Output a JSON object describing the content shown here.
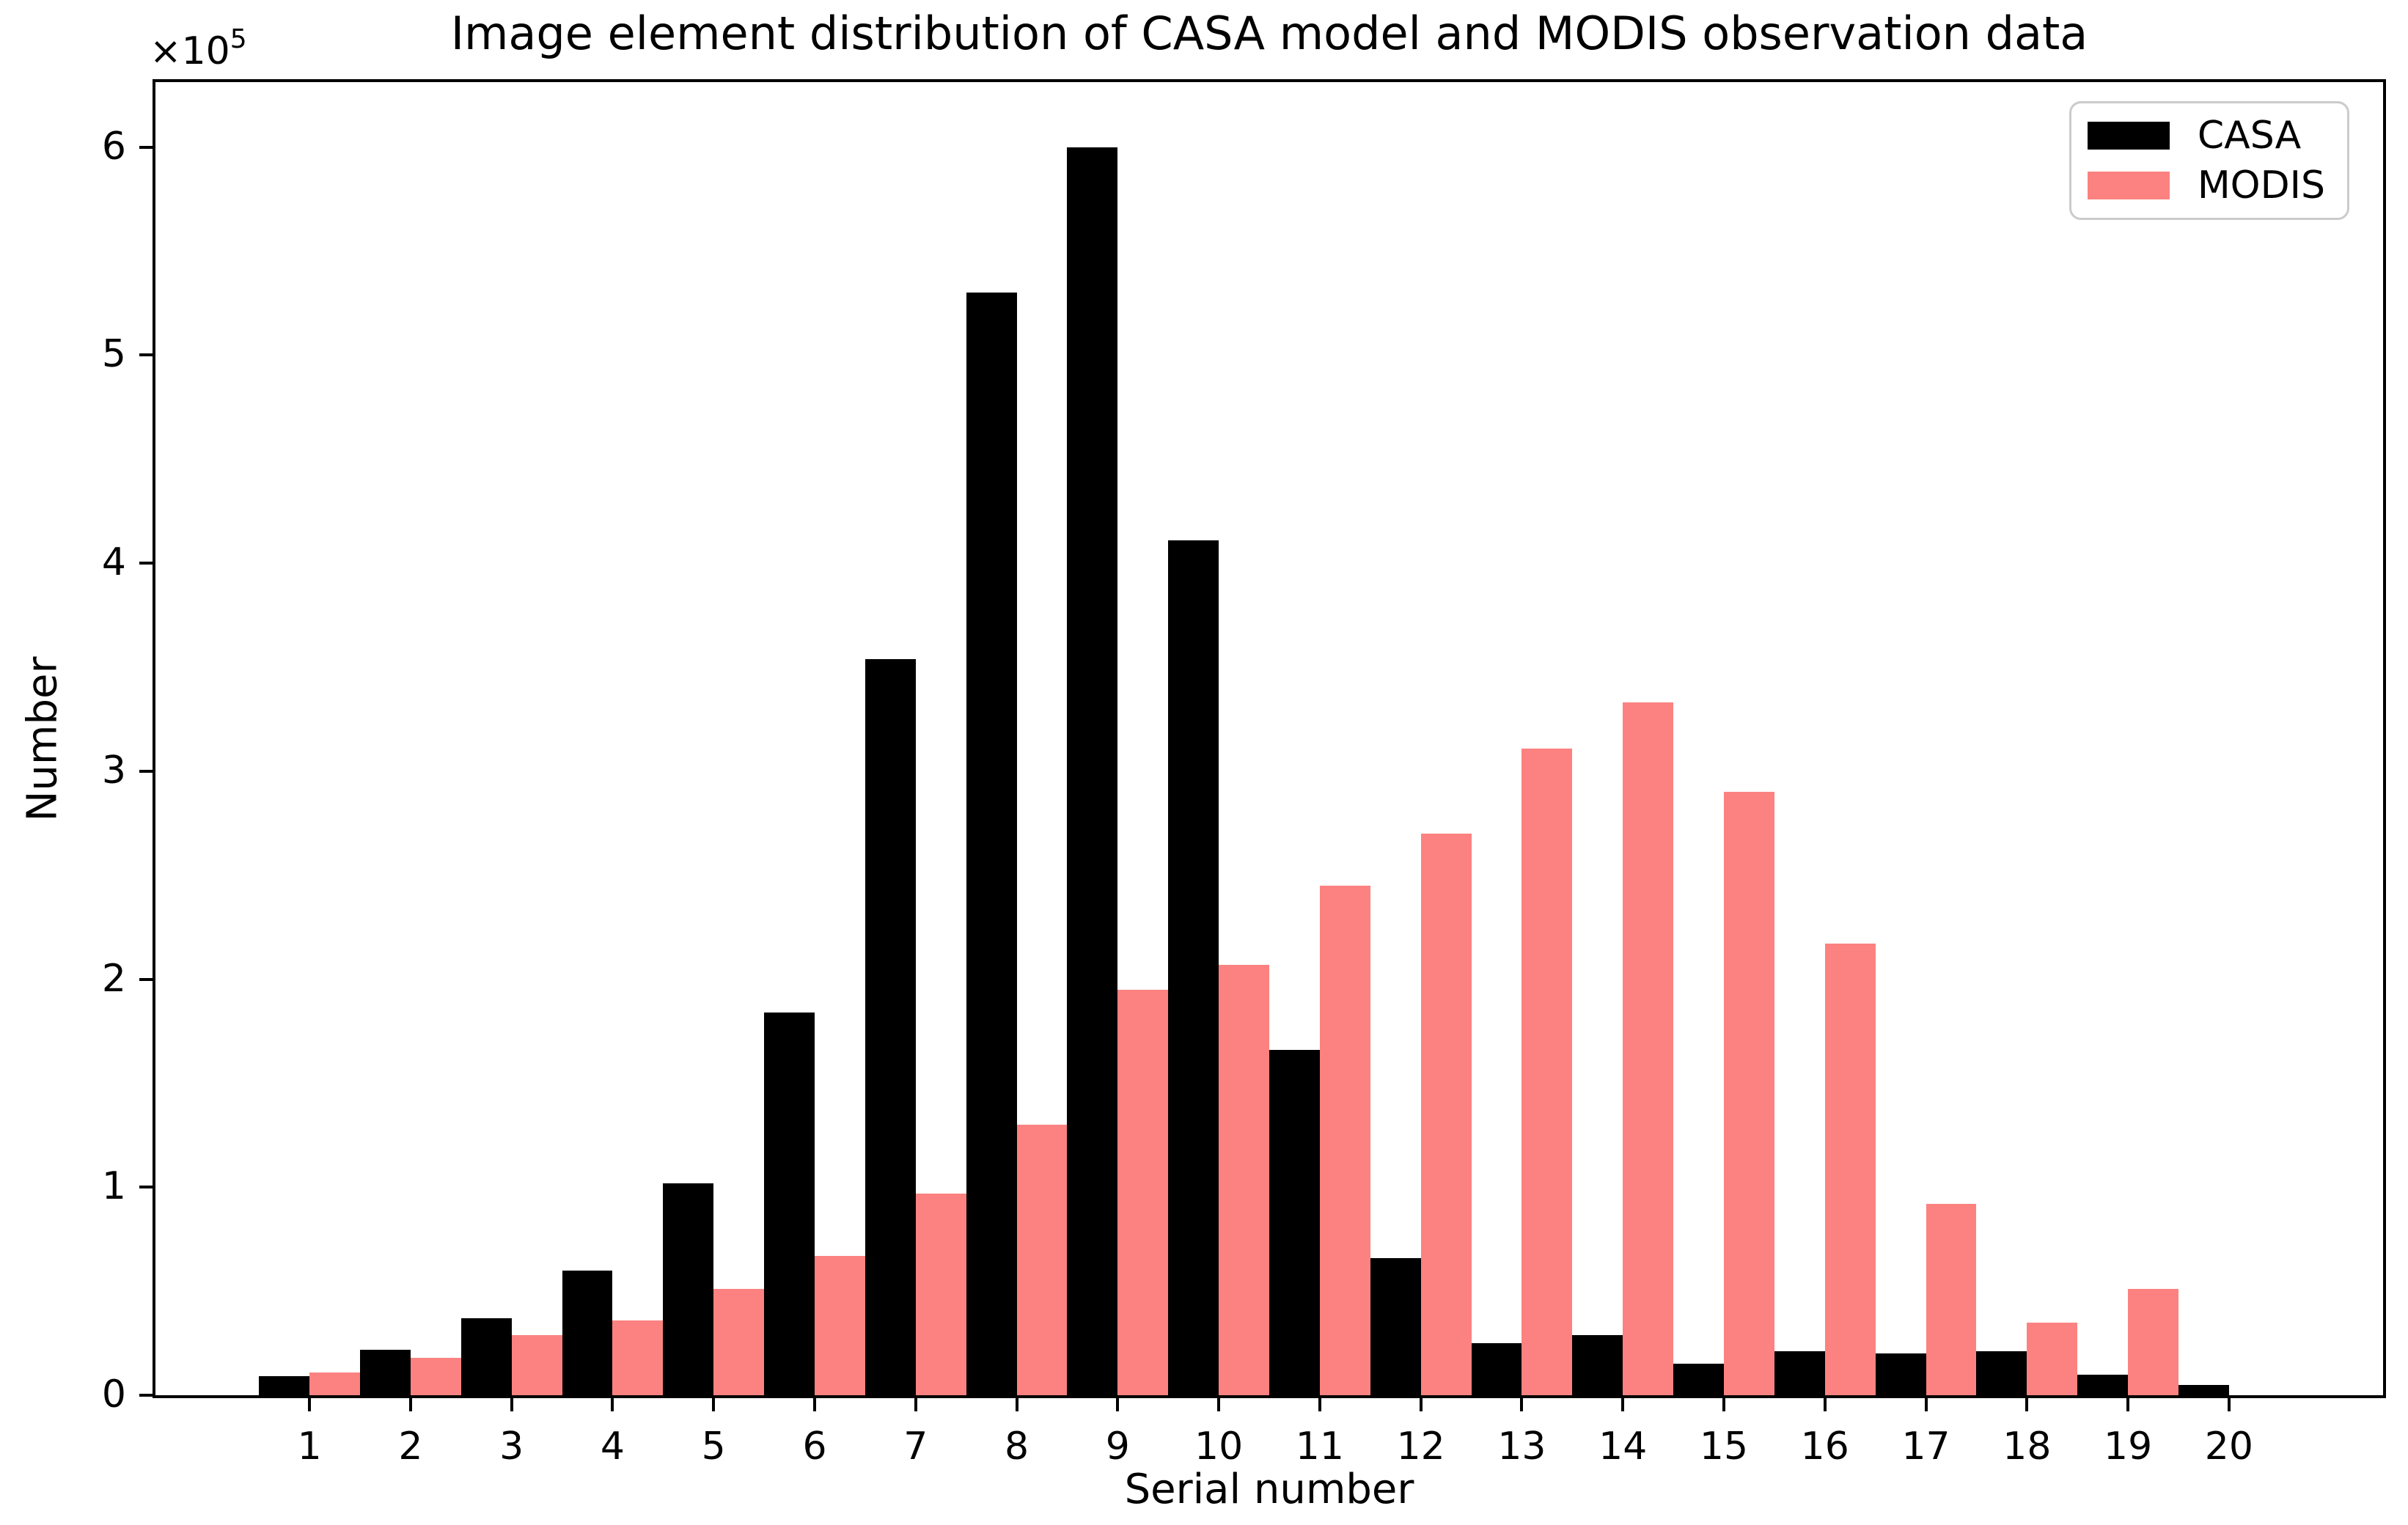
{
  "chart_data": {
    "type": "bar",
    "title": "Image element distribution of CASA model and MODIS observation data",
    "xlabel": "Serial number",
    "ylabel": "Number",
    "y_offset_label": {
      "base": "×10",
      "exponent": "5"
    },
    "categories": [
      1,
      2,
      3,
      4,
      5,
      6,
      7,
      8,
      9,
      10,
      11,
      12,
      13,
      14,
      15,
      16,
      17,
      18,
      19,
      20
    ],
    "series": [
      {
        "name": "CASA",
        "color": "#000000",
        "values": [
          9000,
          22000,
          37000,
          60000,
          102000,
          184000,
          354000,
          530000,
          600000,
          411000,
          166000,
          66000,
          25000,
          29000,
          15000,
          21000,
          20000,
          21000,
          10000,
          5000
        ]
      },
      {
        "name": "MODIS",
        "color": "#FB8280",
        "values": [
          11000,
          18000,
          29000,
          36000,
          51000,
          67000,
          97000,
          130000,
          195000,
          207000,
          245000,
          270000,
          311000,
          333000,
          290000,
          217000,
          92000,
          35000,
          51000,
          0
        ]
      }
    ],
    "yticks": [
      0,
      1,
      2,
      3,
      4,
      5,
      6
    ],
    "y_multiplier": 100000,
    "ylim": [
      0,
      631200
    ],
    "xlim": [
      -0.525,
      21.525
    ],
    "bar_width": 0.5,
    "grid": false,
    "legend_position": "upper right"
  },
  "style": {
    "background": "#FFFFFF",
    "spine_color": "#000000",
    "text_color": "#000000",
    "legend_border_color": "#CBCBCB"
  }
}
